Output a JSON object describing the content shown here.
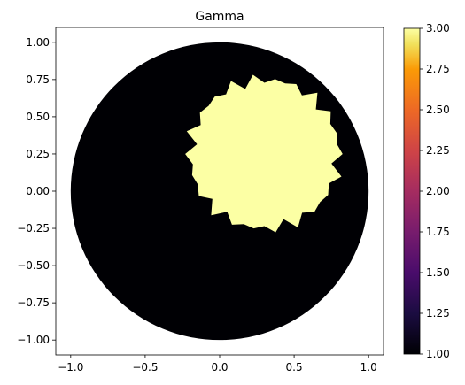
{
  "chart_data": {
    "type": "heatmap",
    "title": "Gamma",
    "xlabel": "",
    "ylabel": "",
    "xlim": [
      -1.1,
      1.1
    ],
    "ylim": [
      -1.1,
      1.1
    ],
    "x_ticks": [
      -1.0,
      -0.5,
      0.0,
      0.5,
      1.0
    ],
    "x_tick_labels": [
      "−1.0",
      "−0.5",
      "0.0",
      "0.5",
      "1.0"
    ],
    "y_ticks": [
      1.0,
      0.75,
      0.5,
      0.25,
      0.0,
      -0.25,
      -0.5,
      -0.75,
      -1.0
    ],
    "y_tick_labels": [
      "1.00",
      "0.75",
      "0.50",
      "0.25",
      "0.00",
      "−0.25",
      "−0.50",
      "−0.75",
      "−1.00"
    ],
    "grid": false,
    "colormap": "inferno",
    "domain": {
      "shape": "disk",
      "center": [
        0.0,
        0.0
      ],
      "radius": 1.0,
      "value": 1.0,
      "color": "#000004"
    },
    "inclusion": {
      "shape": "disk",
      "center": [
        0.3,
        0.25
      ],
      "radius": 0.5,
      "value": 3.0,
      "color": "#fcffa4"
    },
    "colorbar": {
      "range": [
        1.0,
        3.0
      ],
      "ticks": [
        1.0,
        1.25,
        1.5,
        1.75,
        2.0,
        2.25,
        2.5,
        2.75,
        3.0
      ],
      "tick_labels": [
        "1.00",
        "1.25",
        "1.50",
        "1.75",
        "2.00",
        "2.25",
        "2.50",
        "2.75",
        "3.00"
      ]
    }
  }
}
